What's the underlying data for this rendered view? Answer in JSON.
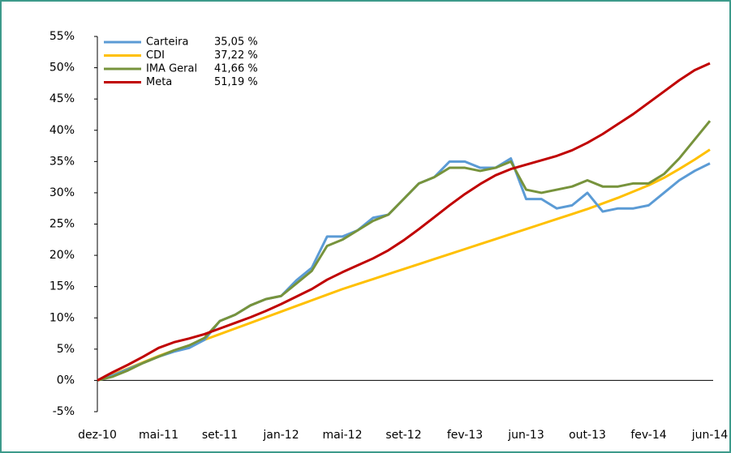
{
  "chart_data": {
    "type": "line",
    "categories": [
      "dez-10",
      null,
      null,
      null,
      "mai-11",
      null,
      null,
      null,
      "set-11",
      null,
      null,
      null,
      "jan-12",
      null,
      null,
      null,
      "mai-12",
      null,
      null,
      null,
      "set-12",
      null,
      null,
      null,
      "fev-13",
      null,
      null,
      null,
      "jun-13",
      null,
      null,
      null,
      "out-13",
      null,
      null,
      null,
      "fev-14",
      null,
      null,
      null,
      "jun-14"
    ],
    "series": [
      {
        "name": "Carteira",
        "value_label": "35,05 %",
        "color": "#5b9bd5",
        "values": [
          0,
          0.8,
          1.8,
          2.8,
          3.8,
          4.6,
          5.2,
          6.5,
          9.5,
          10.5,
          12,
          13,
          13.5,
          16,
          18,
          23,
          23,
          24,
          26,
          26.5,
          29,
          31.5,
          32.5,
          35,
          35,
          34,
          34,
          35.5,
          29,
          29,
          27.5,
          28,
          30,
          27,
          27.5,
          27.5,
          28,
          30,
          32,
          33.5,
          34.7
        ]
      },
      {
        "name": "CDI",
        "value_label": "37,22 %",
        "color": "#ffc000",
        "values": [
          0,
          0.9,
          1.9,
          2.9,
          3.9,
          4.8,
          5.6,
          6.5,
          7.4,
          8.3,
          9.2,
          10.1,
          11,
          11.9,
          12.8,
          13.7,
          14.6,
          15.4,
          16.2,
          17,
          17.8,
          18.6,
          19.4,
          20.2,
          21,
          21.8,
          22.6,
          23.4,
          24.2,
          25,
          25.8,
          26.6,
          27.4,
          28.3,
          29.2,
          30.2,
          31.2,
          32.4,
          33.8,
          35.3,
          36.9
        ]
      },
      {
        "name": "IMA Geral",
        "value_label": "41,66 %",
        "color": "#77933c",
        "values": [
          0,
          0.6,
          1.6,
          2.8,
          3.8,
          4.8,
          5.6,
          6.8,
          9.5,
          10.5,
          12,
          13,
          13.5,
          15.5,
          17.5,
          21.5,
          22.5,
          24,
          25.5,
          26.5,
          29,
          31.5,
          32.5,
          34,
          34,
          33.5,
          34,
          35,
          30.5,
          30,
          30.5,
          31,
          32,
          31,
          31,
          31.5,
          31.5,
          33,
          35.5,
          38.5,
          41.5
        ]
      },
      {
        "name": "Meta",
        "value_label": "51,19 %",
        "color": "#c00000",
        "values": [
          0,
          1.3,
          2.5,
          3.8,
          5.2,
          6.1,
          6.7,
          7.4,
          8.3,
          9.2,
          10.1,
          11.1,
          12.2,
          13.4,
          14.6,
          16.1,
          17.3,
          18.4,
          19.5,
          20.8,
          22.4,
          24.2,
          26.1,
          28,
          29.8,
          31.4,
          32.8,
          33.8,
          34.5,
          35.2,
          35.9,
          36.8,
          38,
          39.4,
          41,
          42.6,
          44.4,
          46.2,
          48,
          49.6,
          50.7
        ]
      }
    ],
    "ylim": [
      -5,
      55
    ],
    "yticks": [
      {
        "value": -5,
        "label": "-5%"
      },
      {
        "value": 0,
        "label": "0%"
      },
      {
        "value": 5,
        "label": "5%"
      },
      {
        "value": 10,
        "label": "10%"
      },
      {
        "value": 15,
        "label": "15%"
      },
      {
        "value": 20,
        "label": "20%"
      },
      {
        "value": 25,
        "label": "25%"
      },
      {
        "value": 30,
        "label": "30%"
      },
      {
        "value": 35,
        "label": "35%"
      },
      {
        "value": 40,
        "label": "40%"
      },
      {
        "value": 45,
        "label": "45%"
      },
      {
        "value": 50,
        "label": "50%"
      },
      {
        "value": 55,
        "label": "55%"
      }
    ],
    "grid": false,
    "legend": "top-left"
  }
}
